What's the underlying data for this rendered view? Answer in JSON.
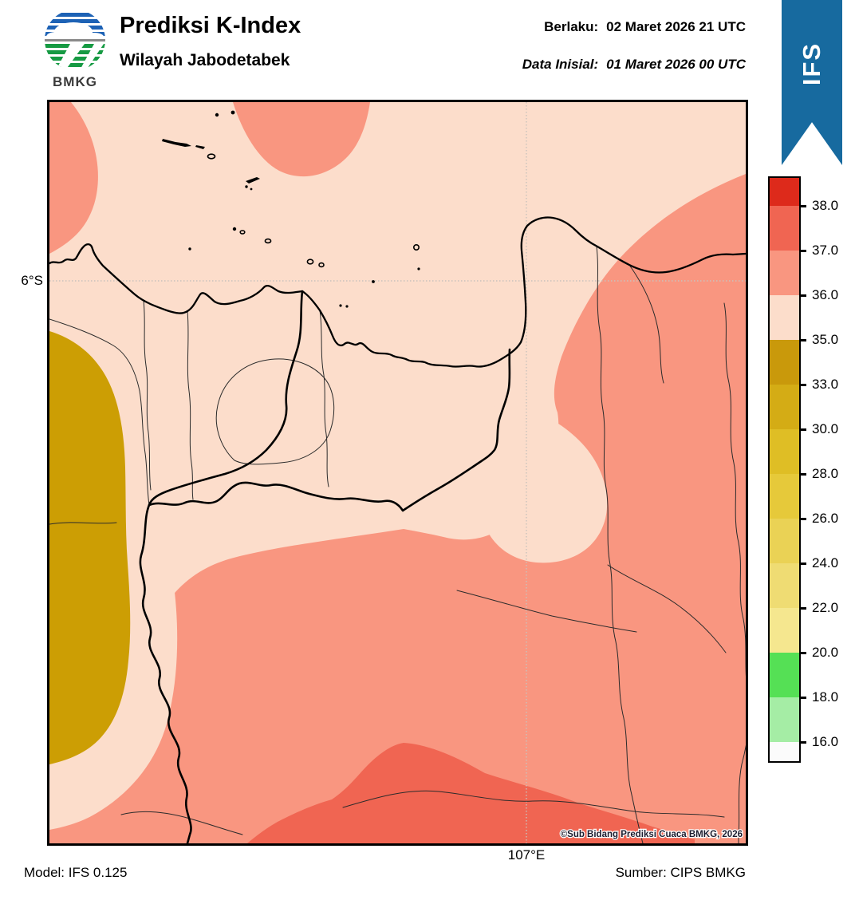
{
  "header": {
    "logo_text": "BMKG",
    "title": "Prediksi K-Index",
    "subtitle": "Wilayah Jabodetabek",
    "berlaku_label": "Berlaku:",
    "berlaku_value": "02 Maret 2026 21 UTC",
    "inisial_label": "Data Inisial:",
    "inisial_value": "01 Maret 2026 00 UTC"
  },
  "ribbon": {
    "label": "IFS",
    "color": "#176A9F"
  },
  "map": {
    "lat_tick": "6°S",
    "lon_tick": "107°E",
    "copyright": "©Sub Bidang Prediksi Cuaca BMKG, 2026",
    "fill_colors": {
      "base_35_36": "#FCDDCB",
      "level_36_37": "#F99680",
      "level_37_38": "#F06552",
      "level_33_35": "#CC9E04"
    }
  },
  "colorbar": {
    "tick_labels": [
      "38.0",
      "37.0",
      "36.0",
      "35.0",
      "33.0",
      "30.0",
      "28.0",
      "26.0",
      "24.0",
      "22.0",
      "20.0",
      "18.0",
      "16.0"
    ],
    "segment_colors_top_to_bottom": [
      "#DD2A1B",
      "#F06552",
      "#F99680",
      "#FCDDCB",
      "#C9990B",
      "#D4AC15",
      "#DFBE25",
      "#E6C93A",
      "#EAD255",
      "#EFDC73",
      "#F5E78F",
      "#55E055",
      "#A5EDA5",
      "#FBFBFB"
    ]
  },
  "footer": {
    "model": "Model: IFS 0.125",
    "source": "Sumber: CIPS BMKG"
  }
}
